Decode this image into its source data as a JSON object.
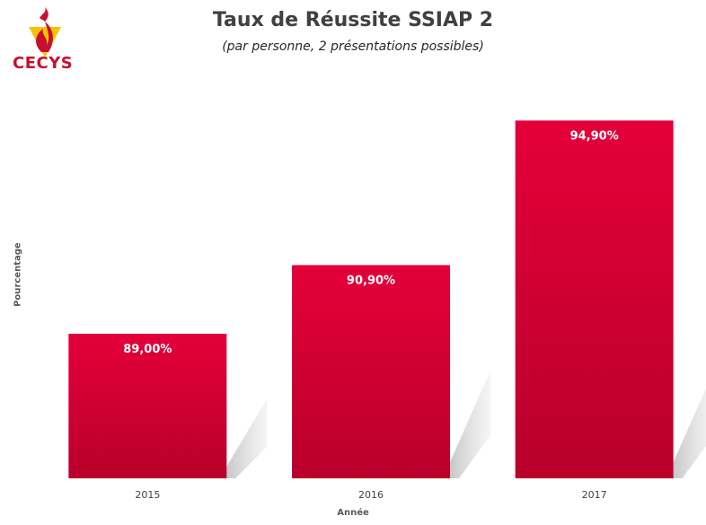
{
  "logo": {
    "text": "CECYS"
  },
  "chart_data": {
    "type": "bar",
    "title": "Taux de Réussite SSIAP 2",
    "subtitle": "(par personne, 2 présentations possibles)",
    "xlabel": "Année",
    "ylabel": "Pourcentage",
    "categories": [
      "2015",
      "2016",
      "2017"
    ],
    "values": [
      89.0,
      90.9,
      94.9
    ],
    "data_labels": [
      "89,00%",
      "90,90%",
      "94,90%"
    ],
    "ylim": [
      85,
      96
    ],
    "grid": false,
    "legend": "none",
    "colors": {
      "bar_top": "#e4003a",
      "bar_bottom": "#b8002b",
      "label": "#ffffff",
      "logo_red": "#c8102e",
      "logo_yellow": "#f5c400"
    }
  }
}
